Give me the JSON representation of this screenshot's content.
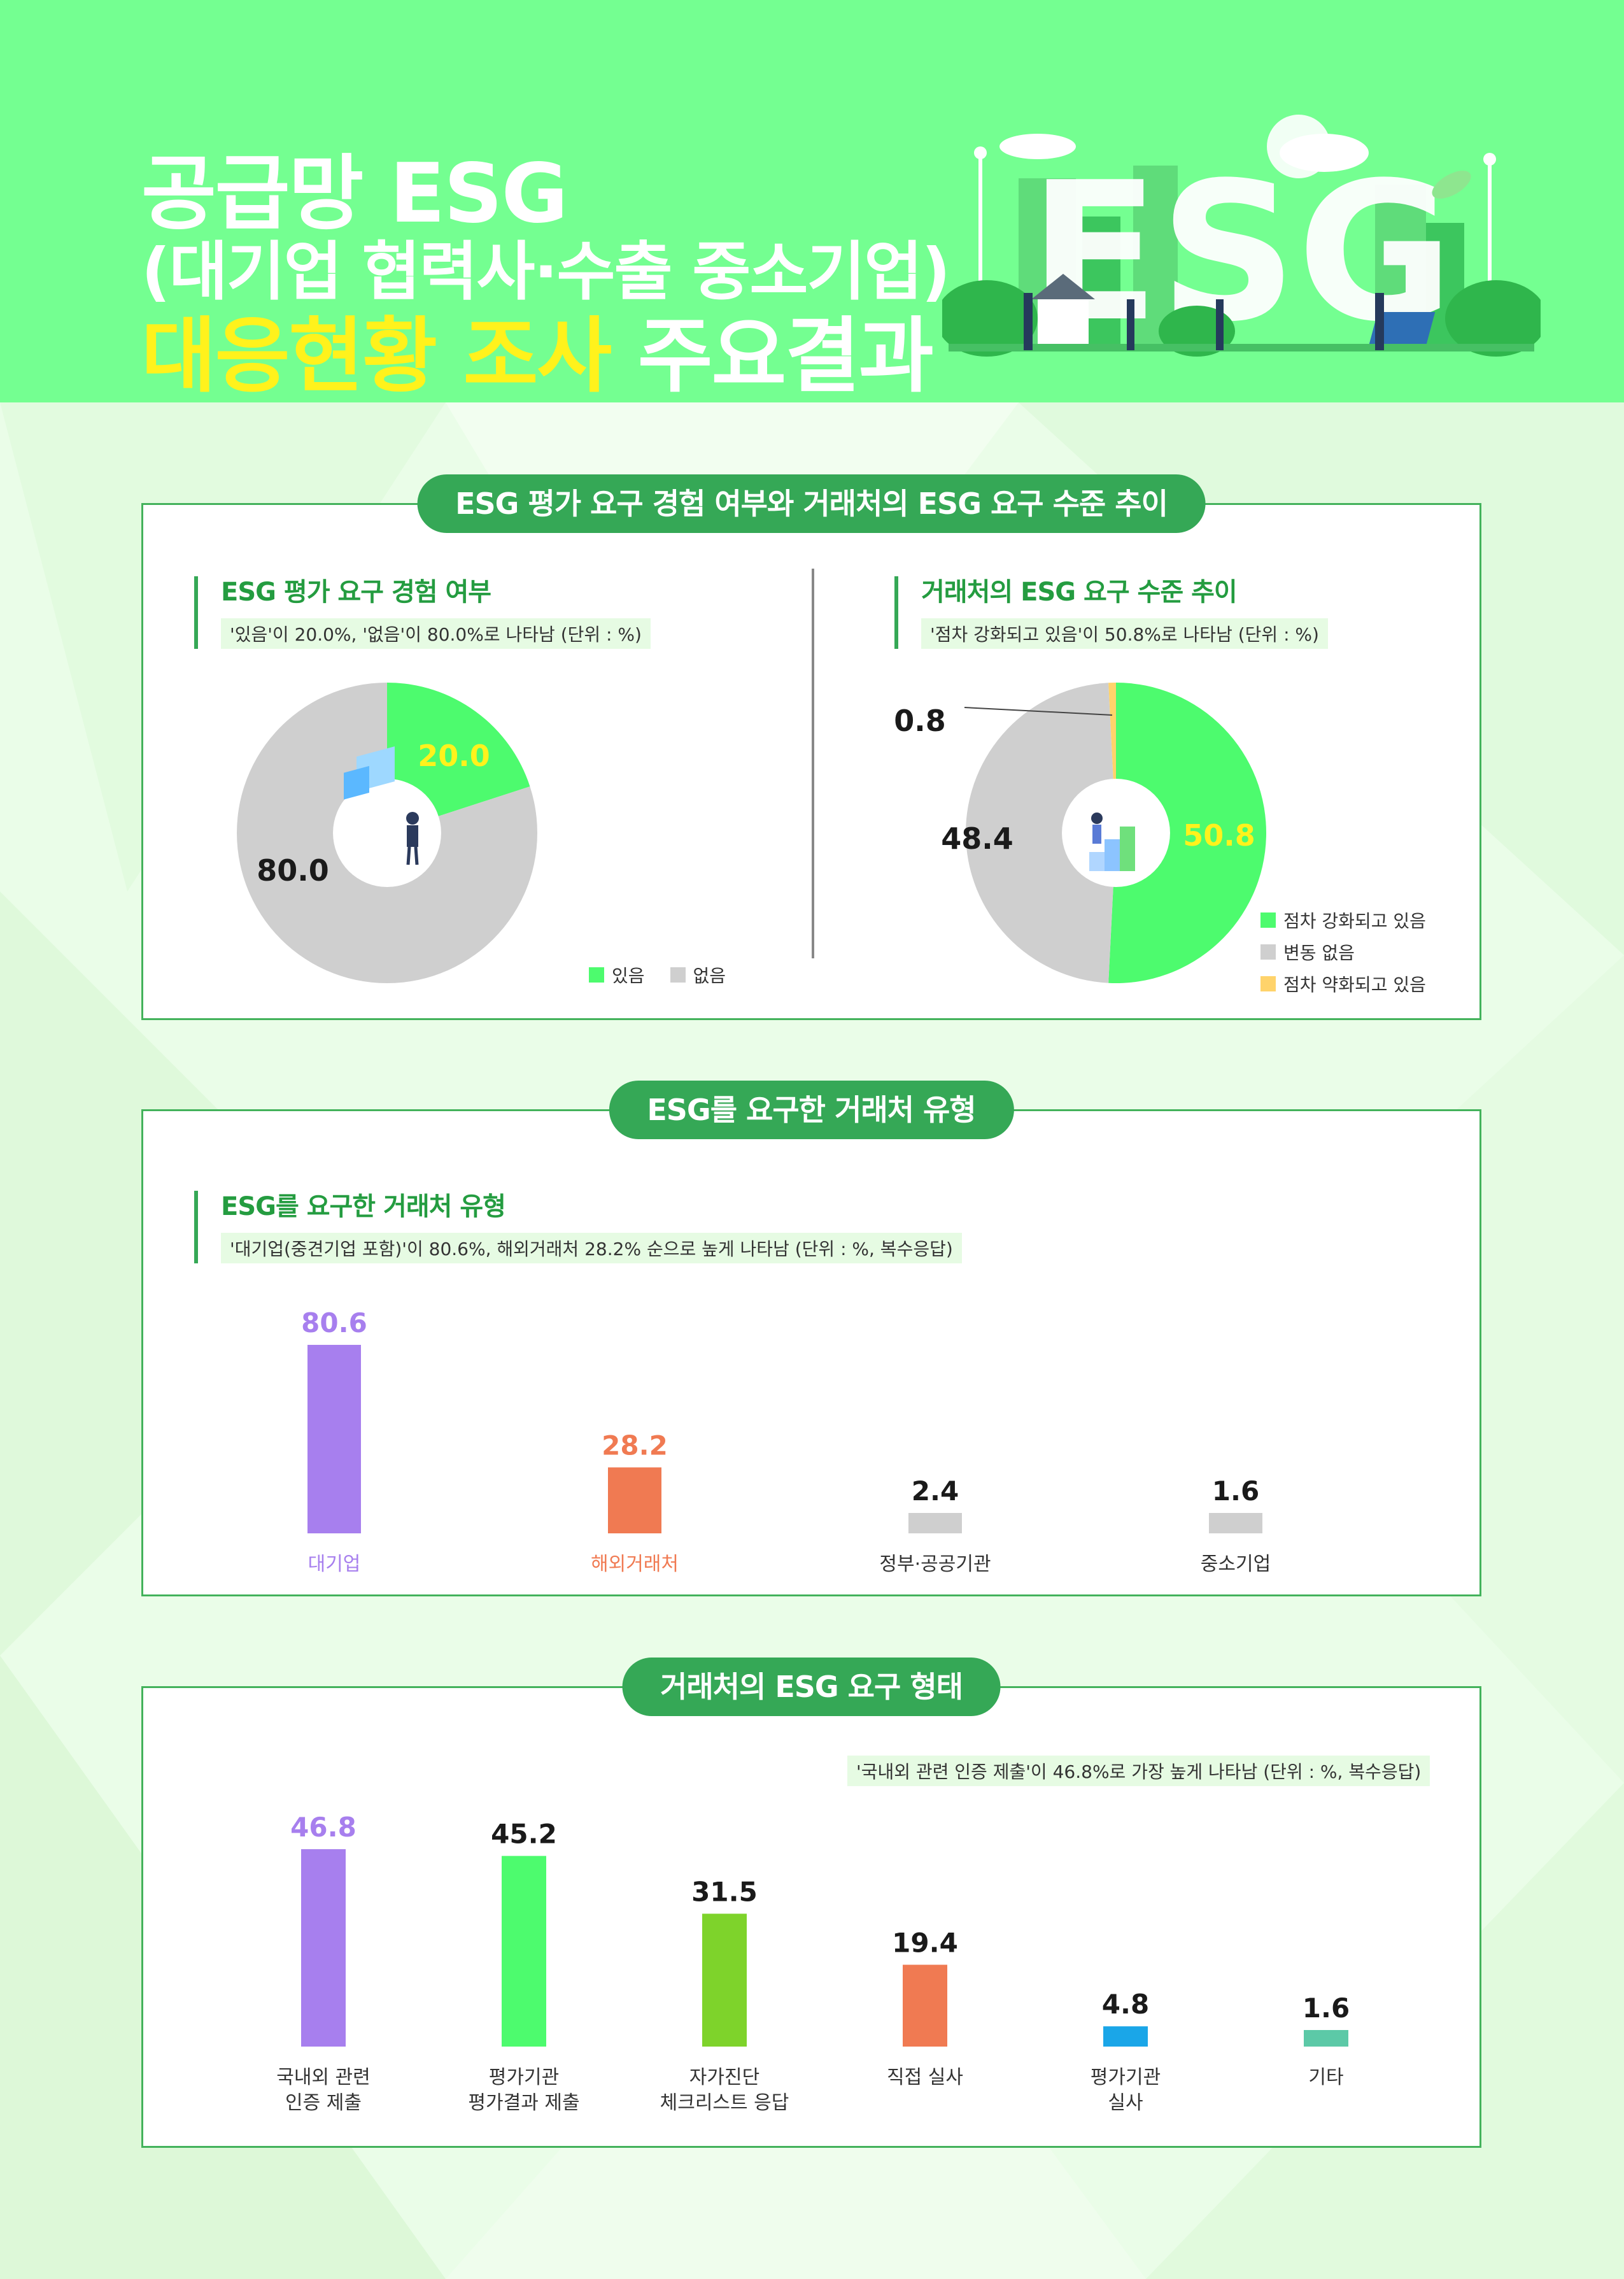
{
  "header": {
    "line1": "공급망 ESG",
    "line2": "(대기업 협력사·수출 중소기업)",
    "line3_yellow": "대응현황 조사",
    "line3_white": "주요결과",
    "illustration_text": "ESG"
  },
  "section1": {
    "pill": "ESG 평가 요구 경험 여부와 거래처의 ESG 요구 수준 추이",
    "left_title": "ESG 평가 요구 경험 여부",
    "left_note": "'있음'이 20.0%, '없음'이 80.0%로 나타남 (단위 : %)",
    "right_title": "거래처의 ESG 요구 수준 추이",
    "right_note": "'점차 강화되고 있음'이 50.8%로 나타남 (단위 : %)"
  },
  "section2": {
    "pill": "ESG를 요구한 거래처 유형",
    "title": "ESG를 요구한 거래처 유형",
    "note": "'대기업(중견기업 포함)'이 80.6%, 해외거래처 28.2% 순으로 높게 나타남 (단위 : %, 복수응답)"
  },
  "section3": {
    "pill": "거래처의 ESG 요구 형태",
    "note": "'국내외 관련 인증 제출'이 46.8%로 가장 높게 나타남 (단위 : %, 복수응답)"
  },
  "colors": {
    "green": "#4dfb6e",
    "gray": "#cfcfcf",
    "yellow": "#ffd36b",
    "purple": "#a77fee",
    "orange": "#f07a52",
    "darkgreen": "#7ed32b",
    "blue": "#1aa6e8",
    "teal": "#5cc9a7"
  },
  "chart_data": [
    {
      "type": "pie",
      "title": "ESG 평가 요구 경험 여부",
      "categories": [
        "있음",
        "없음"
      ],
      "values": [
        20.0,
        80.0
      ],
      "value_labels": [
        "20.0",
        "80.0"
      ],
      "colors": [
        "#4dfb6e",
        "#cfcfcf"
      ],
      "legend": "bottom-right"
    },
    {
      "type": "pie",
      "title": "거래처의 ESG 요구 수준 추이",
      "categories": [
        "점차 강화되고 있음",
        "변동 없음",
        "점차 약화되고 있음"
      ],
      "values": [
        50.8,
        48.4,
        0.8
      ],
      "value_labels": [
        "50.8",
        "48.4",
        "0.8"
      ],
      "colors": [
        "#4dfb6e",
        "#cfcfcf",
        "#ffd36b"
      ],
      "legend": "bottom-right"
    },
    {
      "type": "bar",
      "title": "ESG를 요구한 거래처 유형",
      "categories": [
        "대기업",
        "해외거래처",
        "정부·공공기관",
        "중소기업"
      ],
      "values": [
        80.6,
        28.2,
        2.4,
        1.6
      ],
      "value_labels": [
        "80.6",
        "28.2",
        "2.4",
        "1.6"
      ],
      "colors": [
        "#a77fee",
        "#f07a52",
        "#cfcfcf",
        "#cfcfcf"
      ],
      "ylim": [
        0,
        80.6
      ]
    },
    {
      "type": "bar",
      "title": "거래처의 ESG 요구 형태",
      "categories": [
        [
          "국내외 관련",
          "인증 제출"
        ],
        [
          "평가기관",
          "평가결과 제출"
        ],
        [
          "자가진단",
          "체크리스트 응답"
        ],
        [
          "직접 실사"
        ],
        [
          "평가기관",
          "실사"
        ],
        [
          "기타"
        ]
      ],
      "values": [
        46.8,
        45.2,
        31.5,
        19.4,
        4.8,
        1.6
      ],
      "value_labels": [
        "46.8",
        "45.2",
        "31.5",
        "19.4",
        "4.8",
        "1.6"
      ],
      "colors": [
        "#a77fee",
        "#4dfb6e",
        "#7ed32b",
        "#f07a52",
        "#1aa6e8",
        "#5cc9a7"
      ],
      "ylim": [
        0,
        46.8
      ]
    }
  ]
}
